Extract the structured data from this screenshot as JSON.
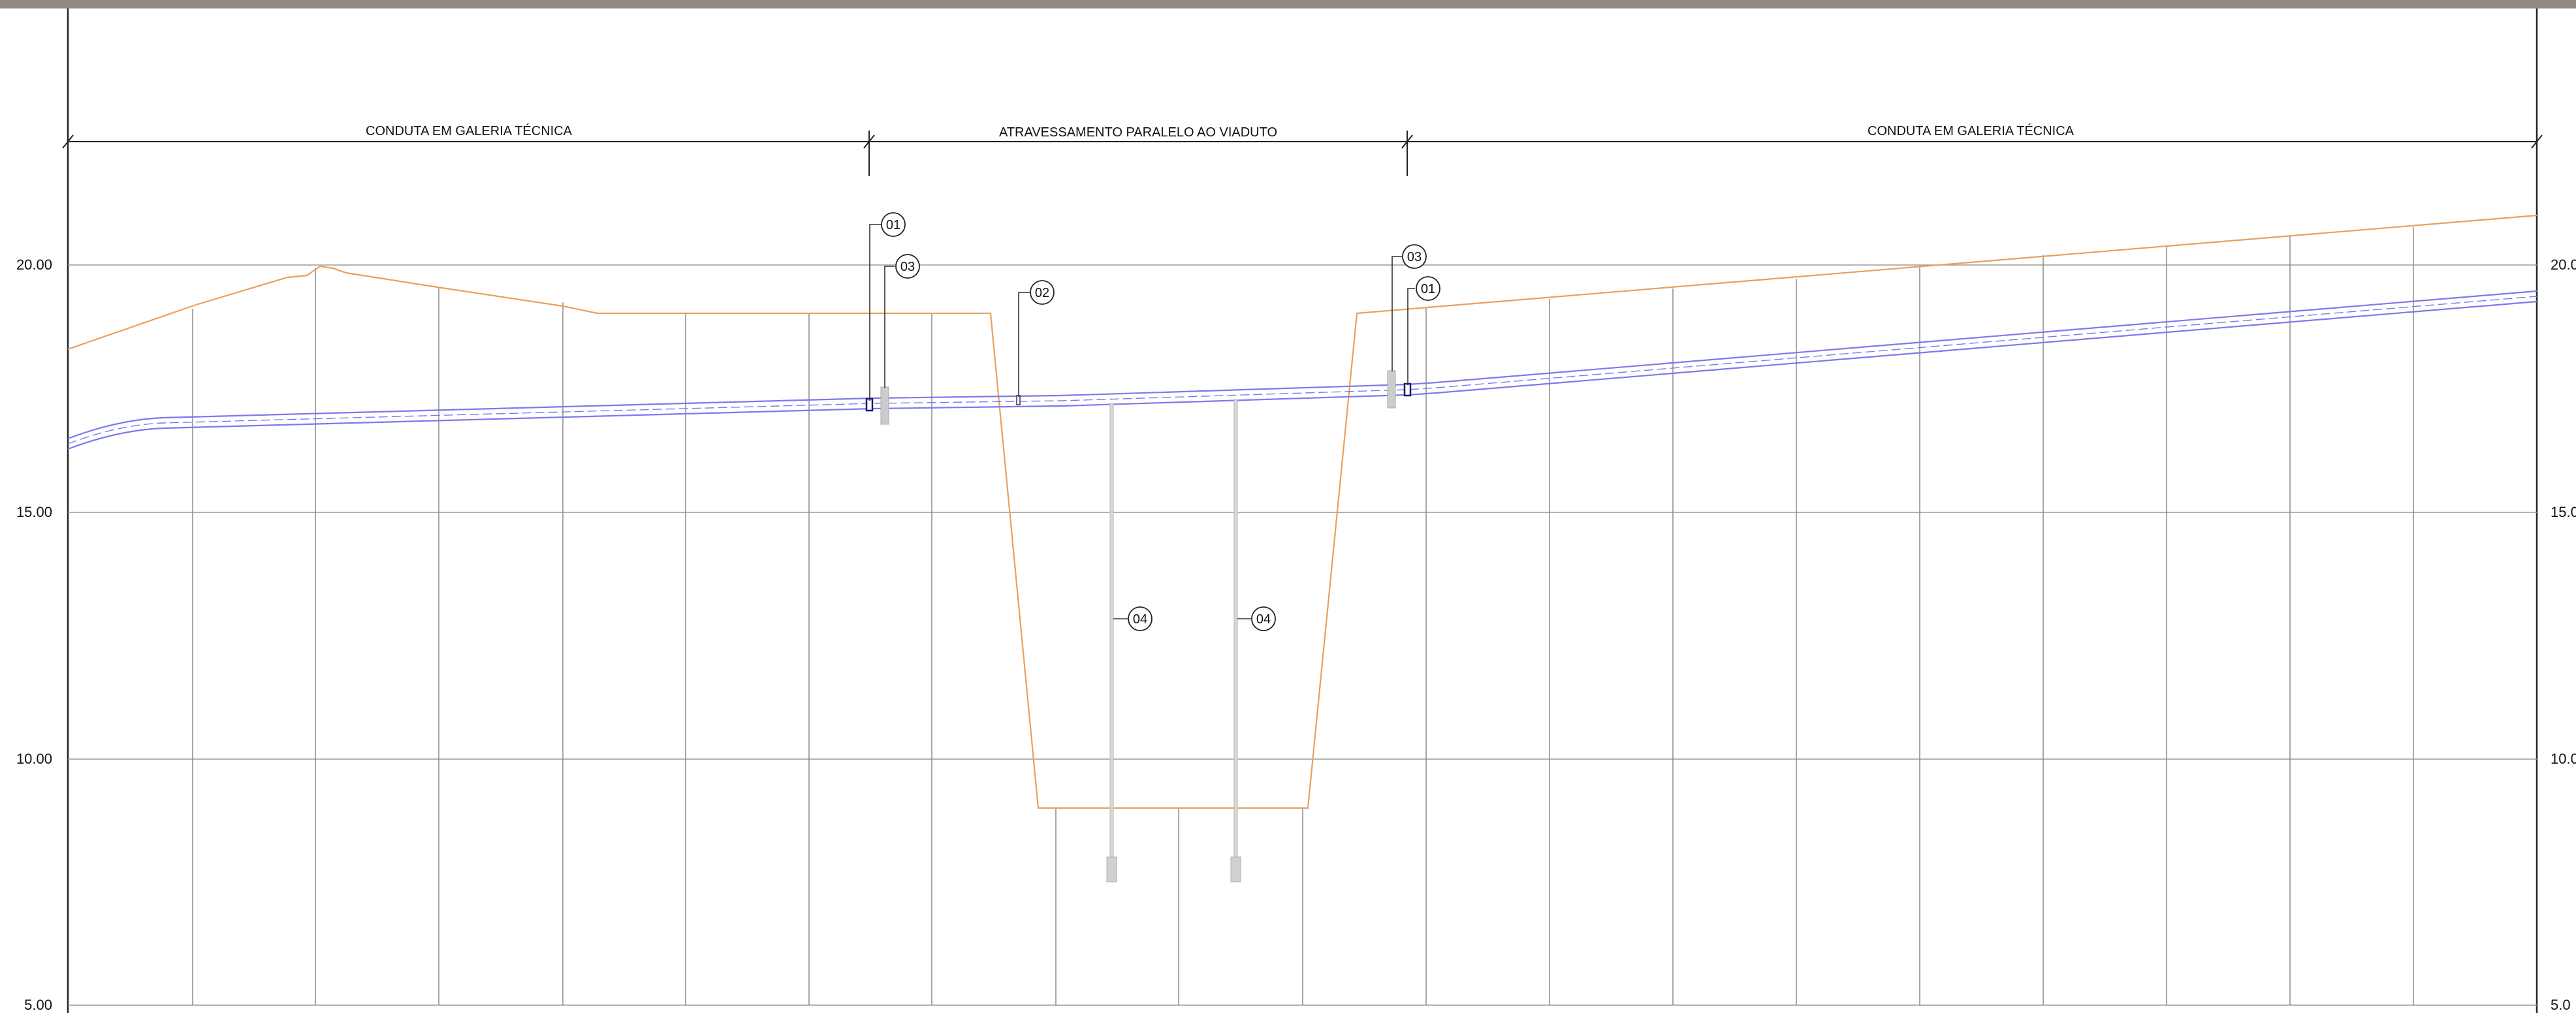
{
  "segments": [
    {
      "label": "CONDUTA EM GALERIA TÉCNICA"
    },
    {
      "label": "ATRAVESSAMENTO PARALELO AO VIADUTO"
    },
    {
      "label": "CONDUTA EM GALERIA TÉCNICA"
    }
  ],
  "elevations": {
    "left": [
      "20.00",
      "15.00",
      "10.00",
      "5.00"
    ],
    "right": [
      "20.0",
      "15.0",
      "10.0",
      "5.0"
    ]
  },
  "callouts": {
    "c1": "01",
    "c2": "03",
    "c3": "02",
    "c4": "04",
    "c5": "04",
    "c6": "03",
    "c7": "01"
  },
  "colors": {
    "terrain": "#e8a060",
    "pipe": "#7a7aee",
    "grid": "#9a9a9a",
    "frame": "#222222",
    "pile": "#c8c8c8"
  }
}
